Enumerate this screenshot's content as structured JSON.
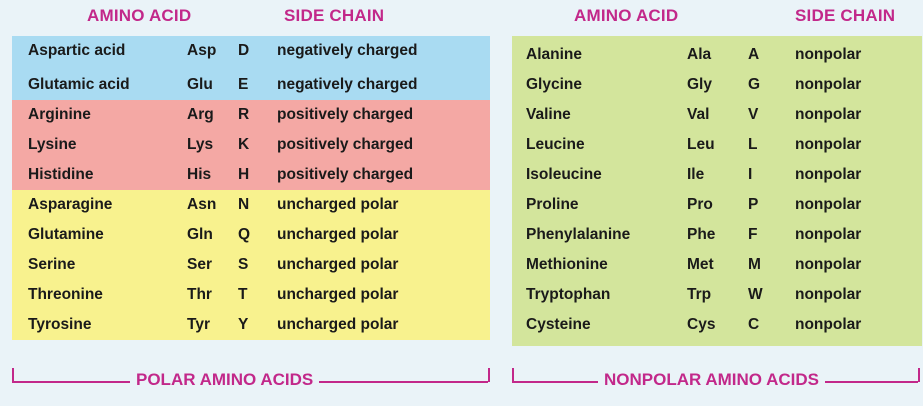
{
  "headers": {
    "amino_acid": "AMINO ACID",
    "side_chain": "SIDE CHAIN"
  },
  "polar": {
    "footer": "POLAR AMINO ACIDS",
    "rows": [
      {
        "name": "Aspartic acid",
        "abbr": "Asp",
        "code": "D",
        "side": "negatively charged",
        "group": "neg"
      },
      {
        "name": "Glutamic acid",
        "abbr": "Glu",
        "code": "E",
        "side": "negatively charged",
        "group": "neg"
      },
      {
        "name": "Arginine",
        "abbr": "Arg",
        "code": "R",
        "side": "positively charged",
        "group": "pos"
      },
      {
        "name": "Lysine",
        "abbr": "Lys",
        "code": "K",
        "side": "positively charged",
        "group": "pos"
      },
      {
        "name": "Histidine",
        "abbr": "His",
        "code": "H",
        "side": "positively charged",
        "group": "pos"
      },
      {
        "name": "Asparagine",
        "abbr": "Asn",
        "code": "N",
        "side": "uncharged polar",
        "group": "unc"
      },
      {
        "name": "Glutamine",
        "abbr": "Gln",
        "code": "Q",
        "side": "uncharged polar",
        "group": "unc"
      },
      {
        "name": "Serine",
        "abbr": "Ser",
        "code": "S",
        "side": "uncharged polar",
        "group": "unc"
      },
      {
        "name": "Threonine",
        "abbr": "Thr",
        "code": "T",
        "side": "uncharged polar",
        "group": "unc"
      },
      {
        "name": "Tyrosine",
        "abbr": "Tyr",
        "code": "Y",
        "side": "uncharged polar",
        "group": "unc"
      }
    ]
  },
  "nonpolar": {
    "footer": "NONPOLAR AMINO ACIDS",
    "rows": [
      {
        "name": "Alanine",
        "abbr": "Ala",
        "code": "A",
        "side": "nonpolar",
        "group": "np"
      },
      {
        "name": "Glycine",
        "abbr": "Gly",
        "code": "G",
        "side": "nonpolar",
        "group": "np"
      },
      {
        "name": "Valine",
        "abbr": "Val",
        "code": "V",
        "side": "nonpolar",
        "group": "np"
      },
      {
        "name": "Leucine",
        "abbr": "Leu",
        "code": "L",
        "side": "nonpolar",
        "group": "np"
      },
      {
        "name": "Isoleucine",
        "abbr": "Ile",
        "code": "I",
        "side": "nonpolar",
        "group": "np"
      },
      {
        "name": "Proline",
        "abbr": "Pro",
        "code": "P",
        "side": "nonpolar",
        "group": "np"
      },
      {
        "name": "Phenylalanine",
        "abbr": "Phe",
        "code": "F",
        "side": "nonpolar",
        "group": "np"
      },
      {
        "name": "Methionine",
        "abbr": "Met",
        "code": "M",
        "side": "nonpolar",
        "group": "np"
      },
      {
        "name": "Tryptophan",
        "abbr": "Trp",
        "code": "W",
        "side": "nonpolar",
        "group": "np"
      },
      {
        "name": "Cysteine",
        "abbr": "Cys",
        "code": "C",
        "side": "nonpolar",
        "group": "np"
      }
    ]
  },
  "colors": {
    "accent": "#c2288a",
    "negatively_charged": "#a9dbf2",
    "positively_charged": "#f4a8a4",
    "uncharged_polar": "#f8f28e",
    "nonpolar": "#d3e59c",
    "background": "#eaf3f8"
  }
}
